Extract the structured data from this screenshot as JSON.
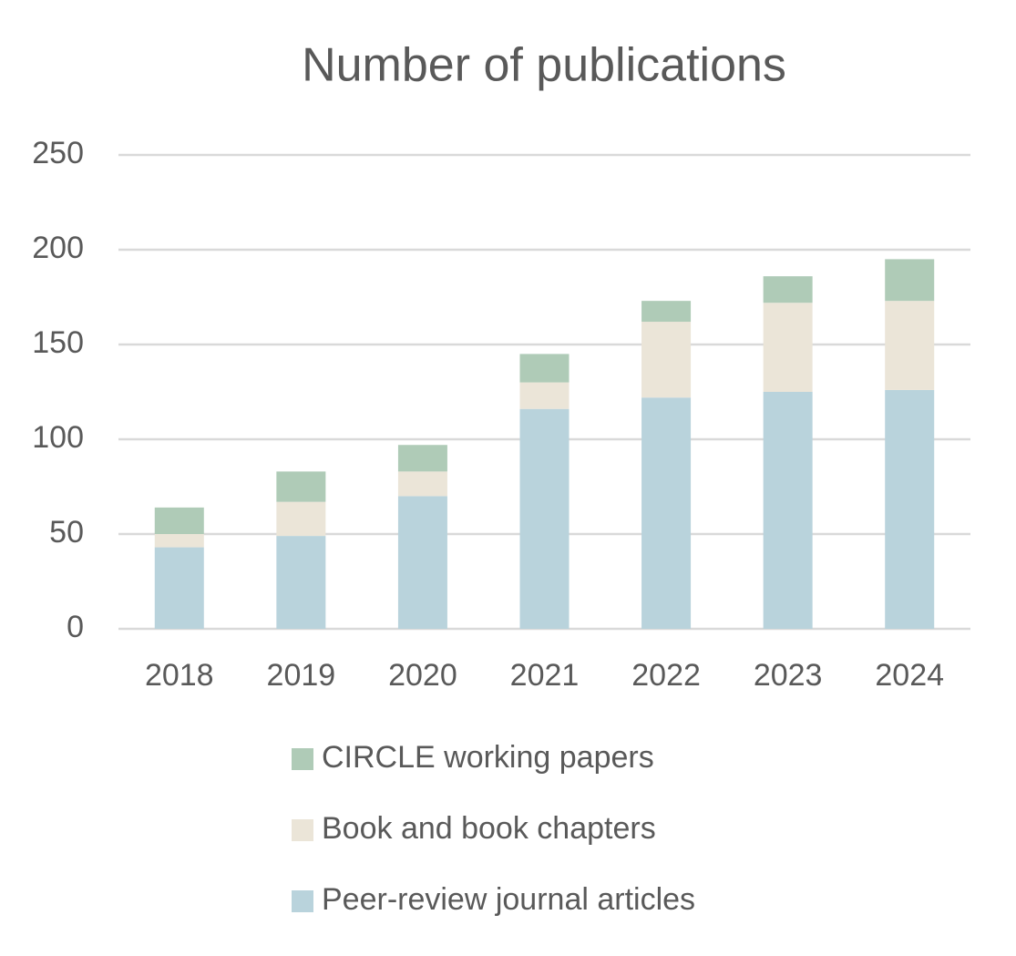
{
  "chart_data": {
    "type": "stacked_bar",
    "title": "Number of publications",
    "categories": [
      "2018",
      "2019",
      "2020",
      "2021",
      "2022",
      "2023",
      "2024"
    ],
    "series": [
      {
        "name": "Peer-review journal articles",
        "color": "#b9d3dc",
        "values": [
          43,
          49,
          70,
          116,
          122,
          125,
          126
        ]
      },
      {
        "name": "Book and book chapters",
        "color": "#ebe5d8",
        "values": [
          7,
          18,
          13,
          14,
          40,
          47,
          47
        ]
      },
      {
        "name": "CIRCLE working papers",
        "color": "#afcbb7",
        "values": [
          14,
          16,
          14,
          15,
          11,
          14,
          22
        ]
      }
    ],
    "ylim": [
      0,
      250
    ],
    "yticks": [
      0,
      50,
      100,
      150,
      200,
      250
    ],
    "grid": true,
    "legend": "bottom"
  }
}
